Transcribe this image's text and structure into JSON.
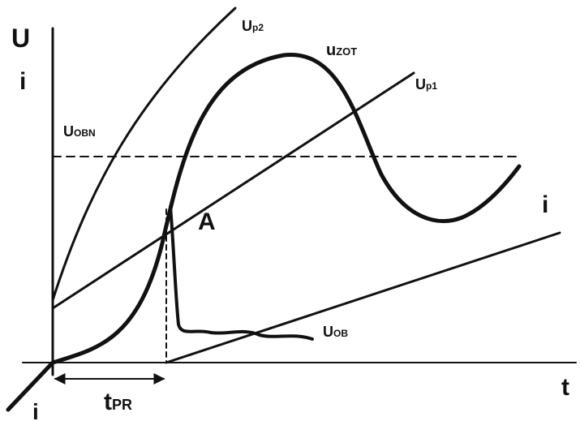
{
  "axis": {
    "y_label_top": "U",
    "y_label_bottom": "i",
    "x_label": "t",
    "origin_label": "i"
  },
  "labels": {
    "up2": {
      "main": "U",
      "sub": "p2"
    },
    "uzot": {
      "main": "u",
      "sub": "ZOT"
    },
    "up1": {
      "main": "U",
      "sub": "p1"
    },
    "uobn": {
      "main": "U",
      "sub": "OBN"
    },
    "point_a": "A",
    "i_line": "i",
    "uob": {
      "main": "U",
      "sub": "OB"
    },
    "tpr": {
      "main": "t",
      "sub": "PR"
    }
  }
}
